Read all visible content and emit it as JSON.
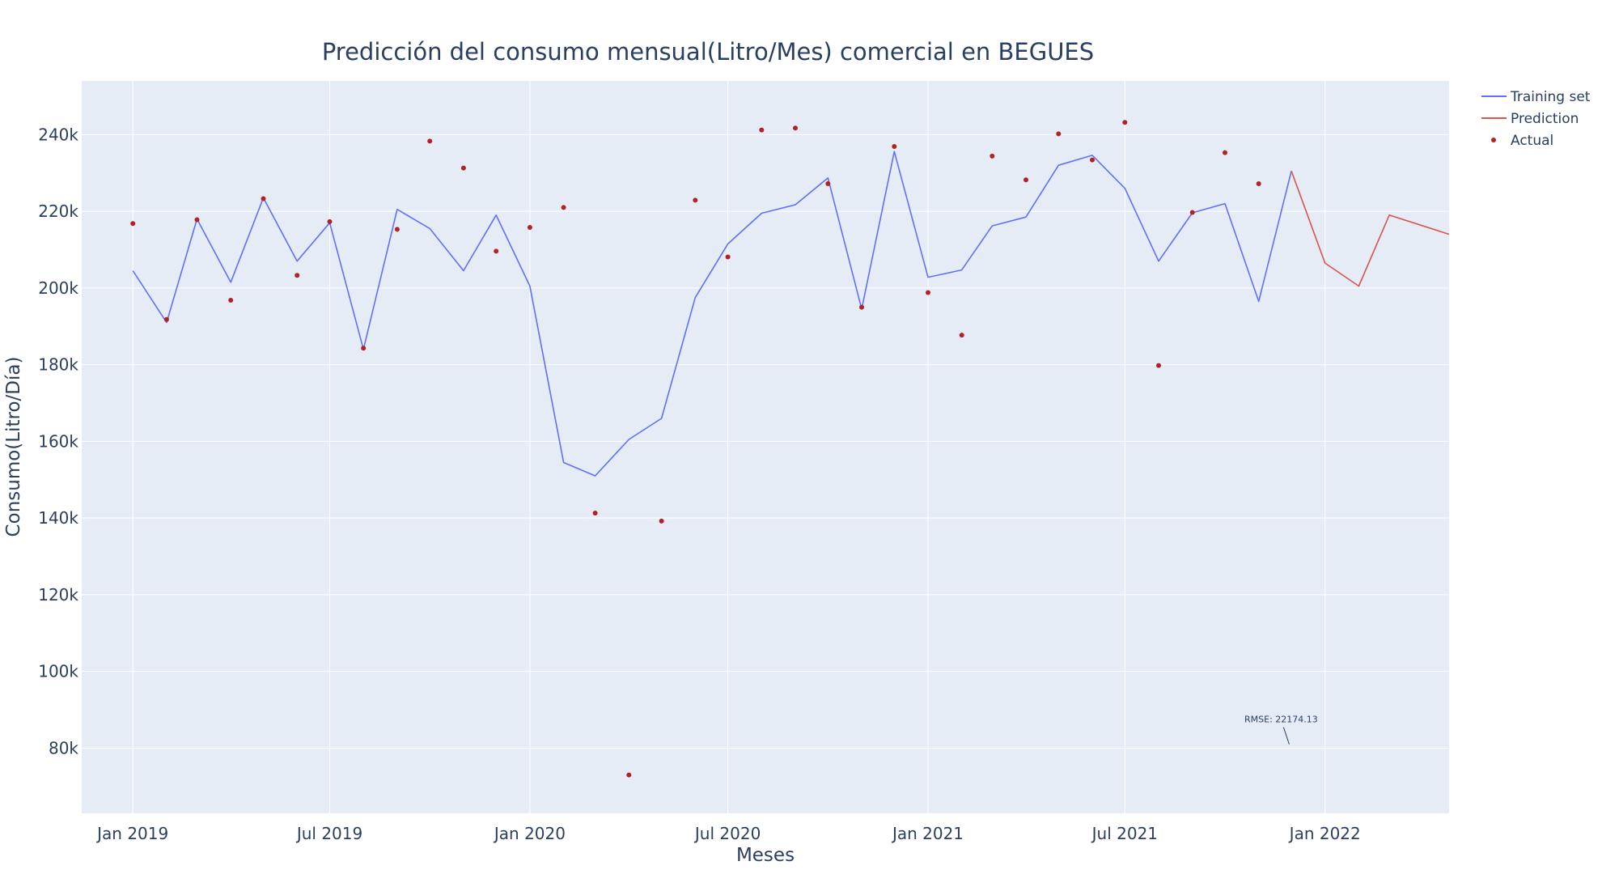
{
  "chart_data": {
    "type": "line",
    "title": "Predicción del consumo mensual(Litro/Mes) comercial en BEGUES",
    "xlabel": "Meses",
    "ylabel": "Consumo(Litro/Día)",
    "x_range": [
      "2018-11-15",
      "2022-04-25"
    ],
    "y_range": [
      63000,
      254000
    ],
    "x_ticks": [
      {
        "date": "2019-01-01",
        "label": "Jan 2019"
      },
      {
        "date": "2019-07-01",
        "label": "Jul 2019"
      },
      {
        "date": "2020-01-01",
        "label": "Jan 2020"
      },
      {
        "date": "2020-07-01",
        "label": "Jul 2020"
      },
      {
        "date": "2021-01-01",
        "label": "Jan 2021"
      },
      {
        "date": "2021-07-01",
        "label": "Jul 2021"
      },
      {
        "date": "2022-01-01",
        "label": "Jan 2022"
      }
    ],
    "y_ticks": [
      {
        "value": 80000,
        "label": "80k"
      },
      {
        "value": 100000,
        "label": "100k"
      },
      {
        "value": 120000,
        "label": "120k"
      },
      {
        "value": 140000,
        "label": "140k"
      },
      {
        "value": 160000,
        "label": "160k"
      },
      {
        "value": 180000,
        "label": "180k"
      },
      {
        "value": 200000,
        "label": "200k"
      },
      {
        "value": 220000,
        "label": "220k"
      },
      {
        "value": 240000,
        "label": "240k"
      }
    ],
    "grid": true,
    "legend_position": "top-right",
    "series": [
      {
        "name": "Training set",
        "kind": "line",
        "color": "#636efa",
        "x": [
          "2019-01-01",
          "2019-02-01",
          "2019-03-01",
          "2019-04-01",
          "2019-05-01",
          "2019-06-01",
          "2019-07-01",
          "2019-08-01",
          "2019-09-01",
          "2019-10-01",
          "2019-11-01",
          "2019-12-01",
          "2020-01-01",
          "2020-02-01",
          "2020-03-01",
          "2020-04-01",
          "2020-05-01",
          "2020-06-01",
          "2020-07-01",
          "2020-08-01",
          "2020-09-01",
          "2020-10-01",
          "2020-11-01",
          "2020-12-01",
          "2021-01-01",
          "2021-02-01",
          "2021-03-01",
          "2021-04-01",
          "2021-05-01",
          "2021-06-01",
          "2021-07-01",
          "2021-08-01",
          "2021-09-01",
          "2021-10-01",
          "2021-11-01",
          "2021-12-01"
        ],
        "y": [
          204500,
          191000,
          218000,
          201500,
          223500,
          207000,
          217000,
          184000,
          220500,
          215500,
          204500,
          219000,
          200500,
          154500,
          151000,
          160500,
          166000,
          197500,
          211500,
          219500,
          221700,
          228700,
          194500,
          235600,
          202800,
          204700,
          216200,
          218500,
          232000,
          234600,
          226000,
          207000,
          219600,
          222000,
          196500,
          230500
        ]
      },
      {
        "name": "Prediction",
        "kind": "line",
        "color": "#d9534f",
        "x": [
          "2021-12-01",
          "2022-01-01",
          "2022-02-01",
          "2022-03-01",
          "2022-04-25"
        ],
        "y": [
          230500,
          206500,
          200500,
          219000,
          214000
        ]
      },
      {
        "name": "Actual",
        "kind": "markers",
        "color": "#b22222",
        "x": [
          "2019-01-01",
          "2019-02-01",
          "2019-03-01",
          "2019-04-01",
          "2019-05-01",
          "2019-06-01",
          "2019-07-01",
          "2019-08-01",
          "2019-09-01",
          "2019-10-01",
          "2019-11-01",
          "2019-12-01",
          "2020-01-01",
          "2020-02-01",
          "2020-03-01",
          "2020-04-01",
          "2020-05-01",
          "2020-06-01",
          "2020-07-01",
          "2020-08-01",
          "2020-09-01",
          "2020-10-01",
          "2020-11-01",
          "2020-12-01",
          "2021-01-01",
          "2021-02-01",
          "2021-03-01",
          "2021-04-01",
          "2021-05-01",
          "2021-06-01",
          "2021-07-01",
          "2021-08-01",
          "2021-09-01",
          "2021-10-01",
          "2021-11-01"
        ],
        "y": [
          216800,
          191800,
          217800,
          196800,
          223300,
          203300,
          217300,
          184300,
          215300,
          238300,
          231300,
          209600,
          215800,
          221000,
          141300,
          73000,
          139200,
          222900,
          208100,
          241200,
          241700,
          227200,
          195000,
          236900,
          198800,
          187700,
          234400,
          228200,
          240200,
          233400,
          243200,
          179800,
          219700,
          235300,
          227200
        ]
      }
    ],
    "annotation": {
      "text": "RMSE: 22174.13",
      "date": "2021-11-29",
      "value": 81000
    }
  }
}
